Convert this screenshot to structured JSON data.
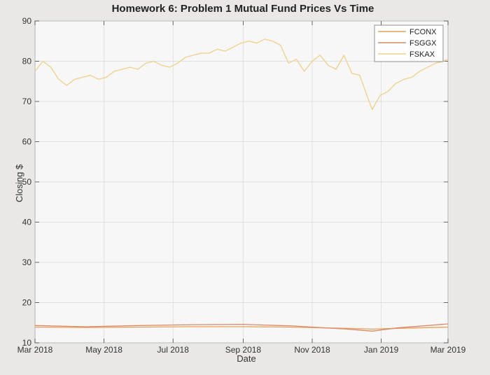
{
  "chart_data": {
    "type": "line",
    "title": "Homework 6: Problem 1 Mutual Fund Prices Vs Time",
    "xlabel": "Date",
    "ylabel": "Closing $",
    "xlim": [
      "2018-03-01",
      "2019-03-01"
    ],
    "ylim": [
      10,
      90
    ],
    "grid": true,
    "legend_position": "top-right",
    "x_tick_labels": [
      "Mar 2018",
      "May 2018",
      "Jul 2018",
      "Sep 2018",
      "Nov 2018",
      "Jan 2019",
      "Mar 2019"
    ],
    "x_ticks": [
      "2018-03-01",
      "2018-05-01",
      "2018-07-01",
      "2018-09-01",
      "2018-11-01",
      "2019-01-01",
      "2019-03-01"
    ],
    "y_ticks": [
      10,
      20,
      30,
      40,
      50,
      60,
      70,
      80,
      90
    ],
    "series": [
      {
        "name": "FCONX",
        "color": "#e8a05a",
        "x": [
          "2018-03-01",
          "2018-04-15",
          "2018-06-01",
          "2018-07-15",
          "2018-09-01",
          "2018-10-15",
          "2018-12-01",
          "2018-12-24",
          "2019-01-15",
          "2019-03-01"
        ],
        "values": [
          13.9,
          13.8,
          13.9,
          14.0,
          14.0,
          13.9,
          13.6,
          13.4,
          13.6,
          13.9
        ]
      },
      {
        "name": "FSGGX",
        "color": "#d98a6a",
        "x": [
          "2018-03-01",
          "2018-04-15",
          "2018-06-01",
          "2018-07-15",
          "2018-09-01",
          "2018-10-15",
          "2018-12-01",
          "2018-12-24",
          "2019-01-15",
          "2019-03-01"
        ],
        "values": [
          14.3,
          14.0,
          14.3,
          14.5,
          14.6,
          14.2,
          13.4,
          12.9,
          13.7,
          14.7
        ]
      },
      {
        "name": "FSKAX",
        "color": "#f0cf8a",
        "x": [
          "2018-03-01",
          "2018-03-08",
          "2018-03-15",
          "2018-03-22",
          "2018-03-29",
          "2018-04-05",
          "2018-04-12",
          "2018-04-19",
          "2018-04-26",
          "2018-05-03",
          "2018-05-10",
          "2018-05-17",
          "2018-05-24",
          "2018-05-31",
          "2018-06-07",
          "2018-06-14",
          "2018-06-21",
          "2018-06-28",
          "2018-07-05",
          "2018-07-12",
          "2018-07-19",
          "2018-07-26",
          "2018-08-02",
          "2018-08-09",
          "2018-08-16",
          "2018-08-23",
          "2018-08-30",
          "2018-09-06",
          "2018-09-13",
          "2018-09-20",
          "2018-09-27",
          "2018-10-04",
          "2018-10-11",
          "2018-10-18",
          "2018-10-25",
          "2018-11-01",
          "2018-11-08",
          "2018-11-15",
          "2018-11-22",
          "2018-11-29",
          "2018-12-06",
          "2018-12-13",
          "2018-12-20",
          "2018-12-24",
          "2018-12-31",
          "2019-01-07",
          "2019-01-14",
          "2019-01-21",
          "2019-01-28",
          "2019-02-04",
          "2019-02-11",
          "2019-02-18",
          "2019-02-25",
          "2019-03-01"
        ],
        "values": [
          77.5,
          80.0,
          78.5,
          75.5,
          74.0,
          75.5,
          76.0,
          76.5,
          75.5,
          76.0,
          77.5,
          78.0,
          78.5,
          78.0,
          79.5,
          80.0,
          79.0,
          78.5,
          79.5,
          81.0,
          81.5,
          82.0,
          82.0,
          83.0,
          82.5,
          83.5,
          84.5,
          85.0,
          84.5,
          85.5,
          85.0,
          84.0,
          79.5,
          80.5,
          77.5,
          80.0,
          81.5,
          79.0,
          78.0,
          81.5,
          77.0,
          76.5,
          71.0,
          68.0,
          71.5,
          72.5,
          74.5,
          75.5,
          76.0,
          77.5,
          78.5,
          79.5,
          80.0,
          80.5
        ]
      }
    ]
  }
}
